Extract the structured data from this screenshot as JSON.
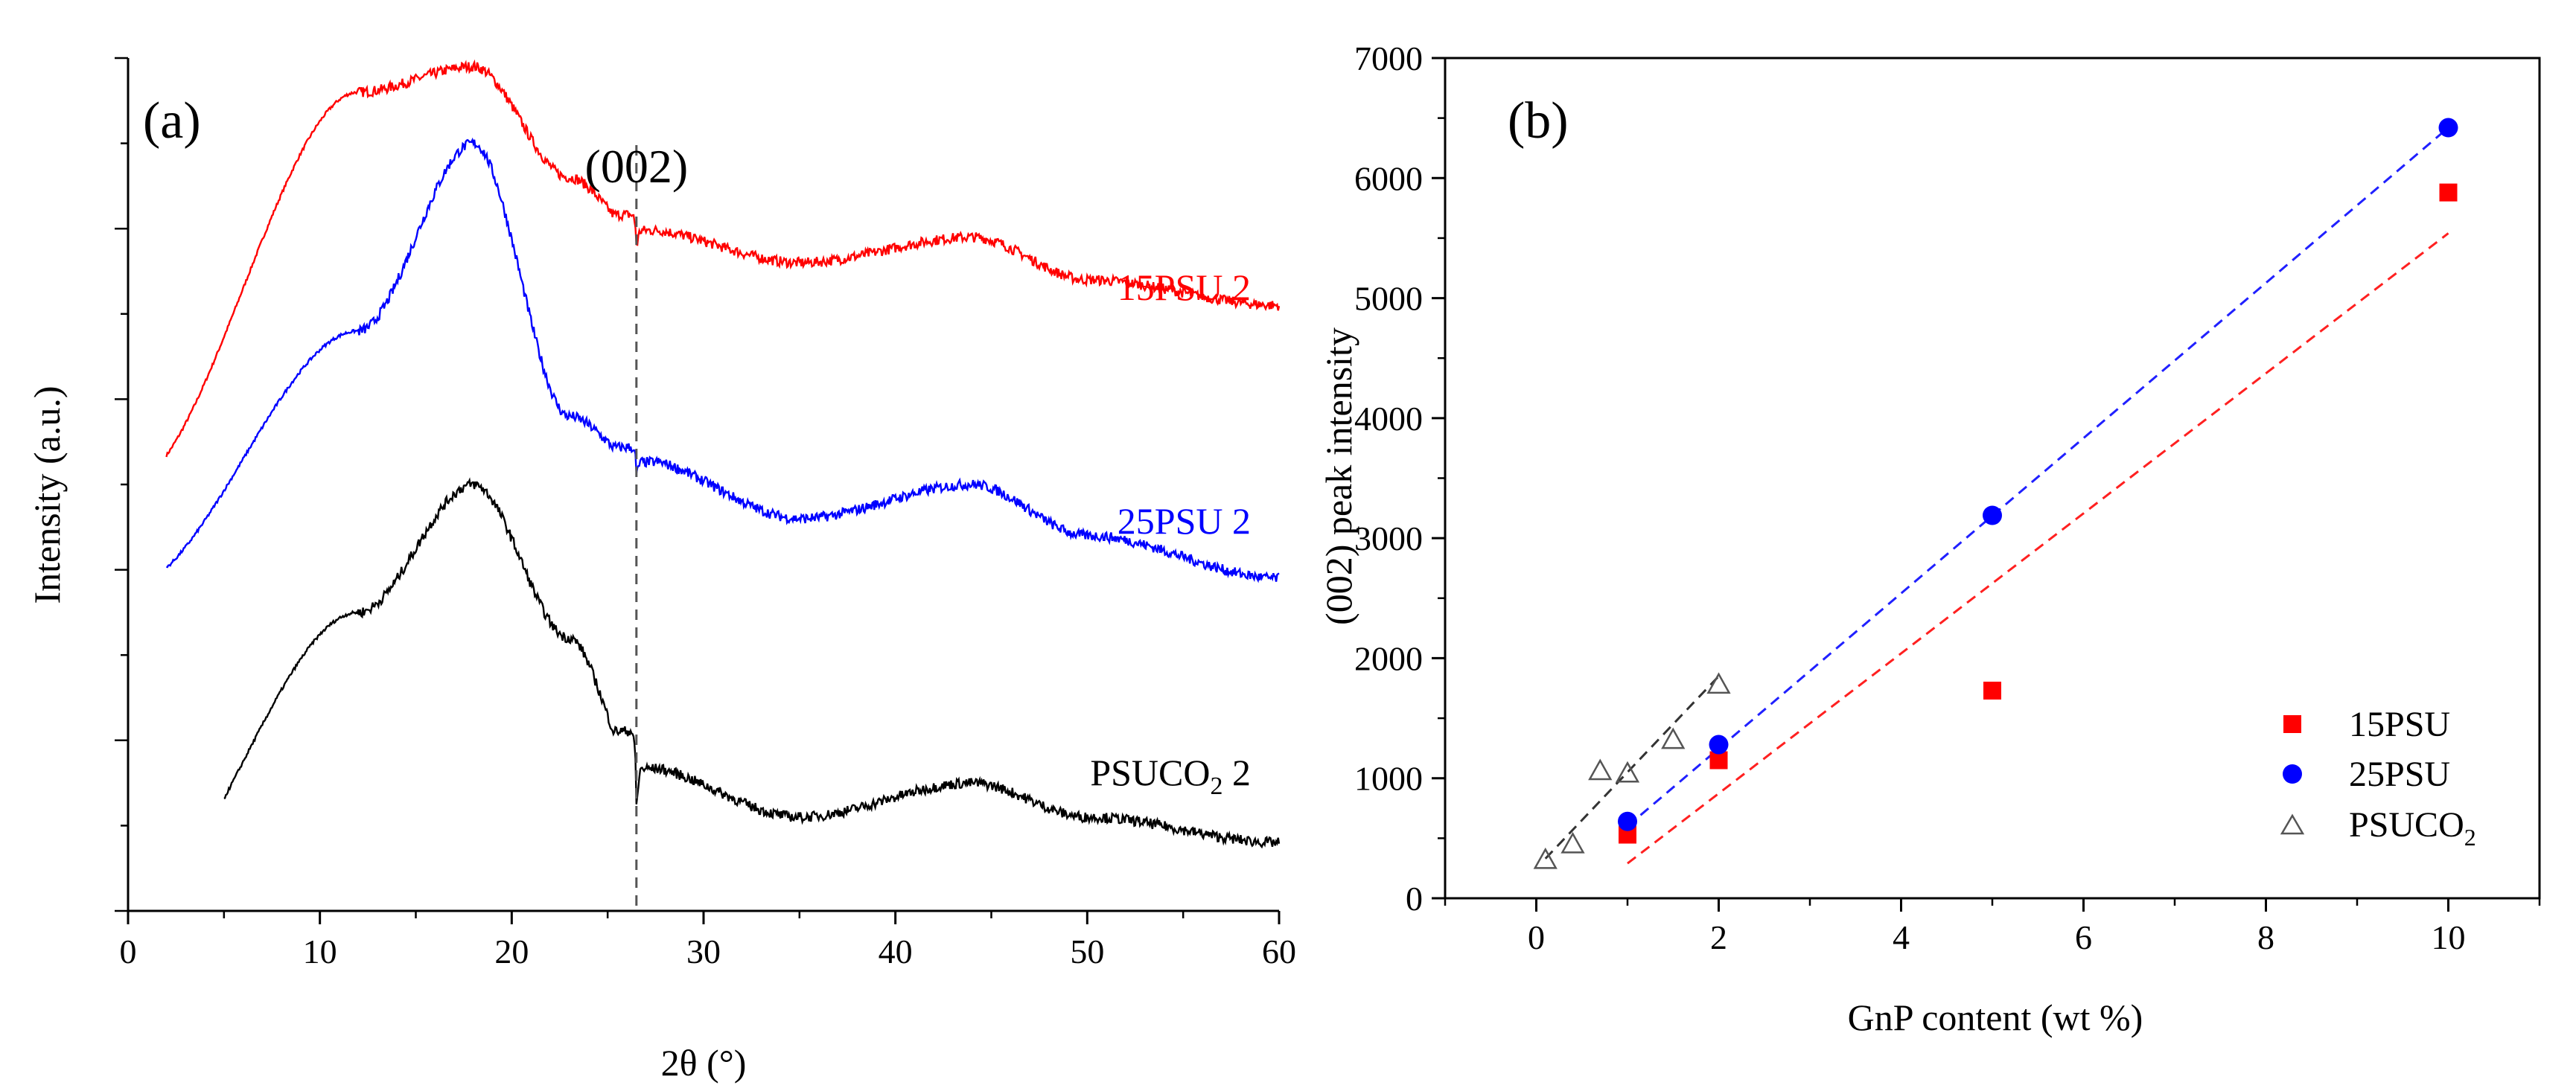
{
  "chart_data": [
    {
      "panel": "(a)",
      "type": "line",
      "title": "",
      "xlabel": "2θ (°)",
      "ylabel": "Intensity (a.u.)",
      "xlim": [
        0,
        60
      ],
      "xticks": [
        0,
        10,
        20,
        30,
        40,
        50,
        60
      ],
      "yticks_labeled": false,
      "grid": false,
      "annotation": {
        "text": "(002)",
        "x": 26.5
      },
      "series": [
        {
          "name": "15PSU 2",
          "color": "#ff0000",
          "x_start": 2,
          "peaks": [
            18,
            26.5,
            44
          ],
          "relative_intensity": [
            0.5,
            0.96,
            0.99,
            0.86,
            0.8,
            0.76,
            0.79,
            0.74,
            0.71
          ]
        },
        {
          "name": "25PSU 2",
          "color": "#0000ff",
          "x_start": 2,
          "peaks": [
            18,
            26.5,
            44
          ],
          "relative_intensity": [
            0.38,
            0.68,
            0.9,
            0.58,
            0.53,
            0.46,
            0.5,
            0.44,
            0.39
          ]
        },
        {
          "name": "PSUCO2 2",
          "color": "#000000",
          "x_start": 5,
          "peaks": [
            18,
            26.5,
            44
          ],
          "relative_intensity": [
            0.0,
            0.35,
            0.5,
            0.32,
            0.17,
            0.11,
            0.15,
            0.11,
            0.08
          ]
        }
      ],
      "series_labels": {
        "s15": "15PSU 2",
        "s25": "25PSU 2",
        "psuco2_main": "PSUCO",
        "psuco2_sub": "2",
        "psuco2_tail": " 2"
      }
    },
    {
      "panel": "(b)",
      "type": "scatter",
      "title": "",
      "xlabel": "GnP content (wt %)",
      "ylabel": "(002) peak intensity",
      "xlim": [
        -1,
        11
      ],
      "ylim": [
        0,
        7000
      ],
      "xticks": [
        0,
        2,
        4,
        6,
        8,
        10
      ],
      "yticks": [
        0,
        1000,
        2000,
        3000,
        4000,
        5000,
        6000,
        7000
      ],
      "grid": false,
      "legend_position": "bottom-right",
      "series": [
        {
          "name": "15PSU",
          "marker": "square",
          "color": "#ff0000",
          "x": [
            1,
            2,
            5,
            10
          ],
          "y": [
            530,
            1150,
            1730,
            5880
          ],
          "fit": {
            "x": [
              1,
              10
            ],
            "y": [
              290,
              5540
            ]
          }
        },
        {
          "name": "25PSU",
          "marker": "circle",
          "color": "#0000ff",
          "x": [
            1,
            2,
            5,
            10
          ],
          "y": [
            640,
            1280,
            3190,
            6420
          ],
          "fit": {
            "x": [
              1,
              10
            ],
            "y": [
              600,
              6420
            ]
          }
        },
        {
          "name": "PSUCO2",
          "marker": "triangle-open",
          "color": "#000000",
          "x": [
            0.1,
            0.4,
            0.7,
            1.0,
            1.5,
            2.0
          ],
          "y": [
            320,
            450,
            1060,
            1040,
            1320,
            1780
          ],
          "fit": {
            "x": [
              0.1,
              2.0
            ],
            "y": [
              330,
              1850
            ]
          }
        }
      ],
      "legend_labels": {
        "s15": "15PSU",
        "s25": "25PSU",
        "psuco2_main": "PSUCO",
        "psuco2_sub": "2"
      }
    }
  ]
}
